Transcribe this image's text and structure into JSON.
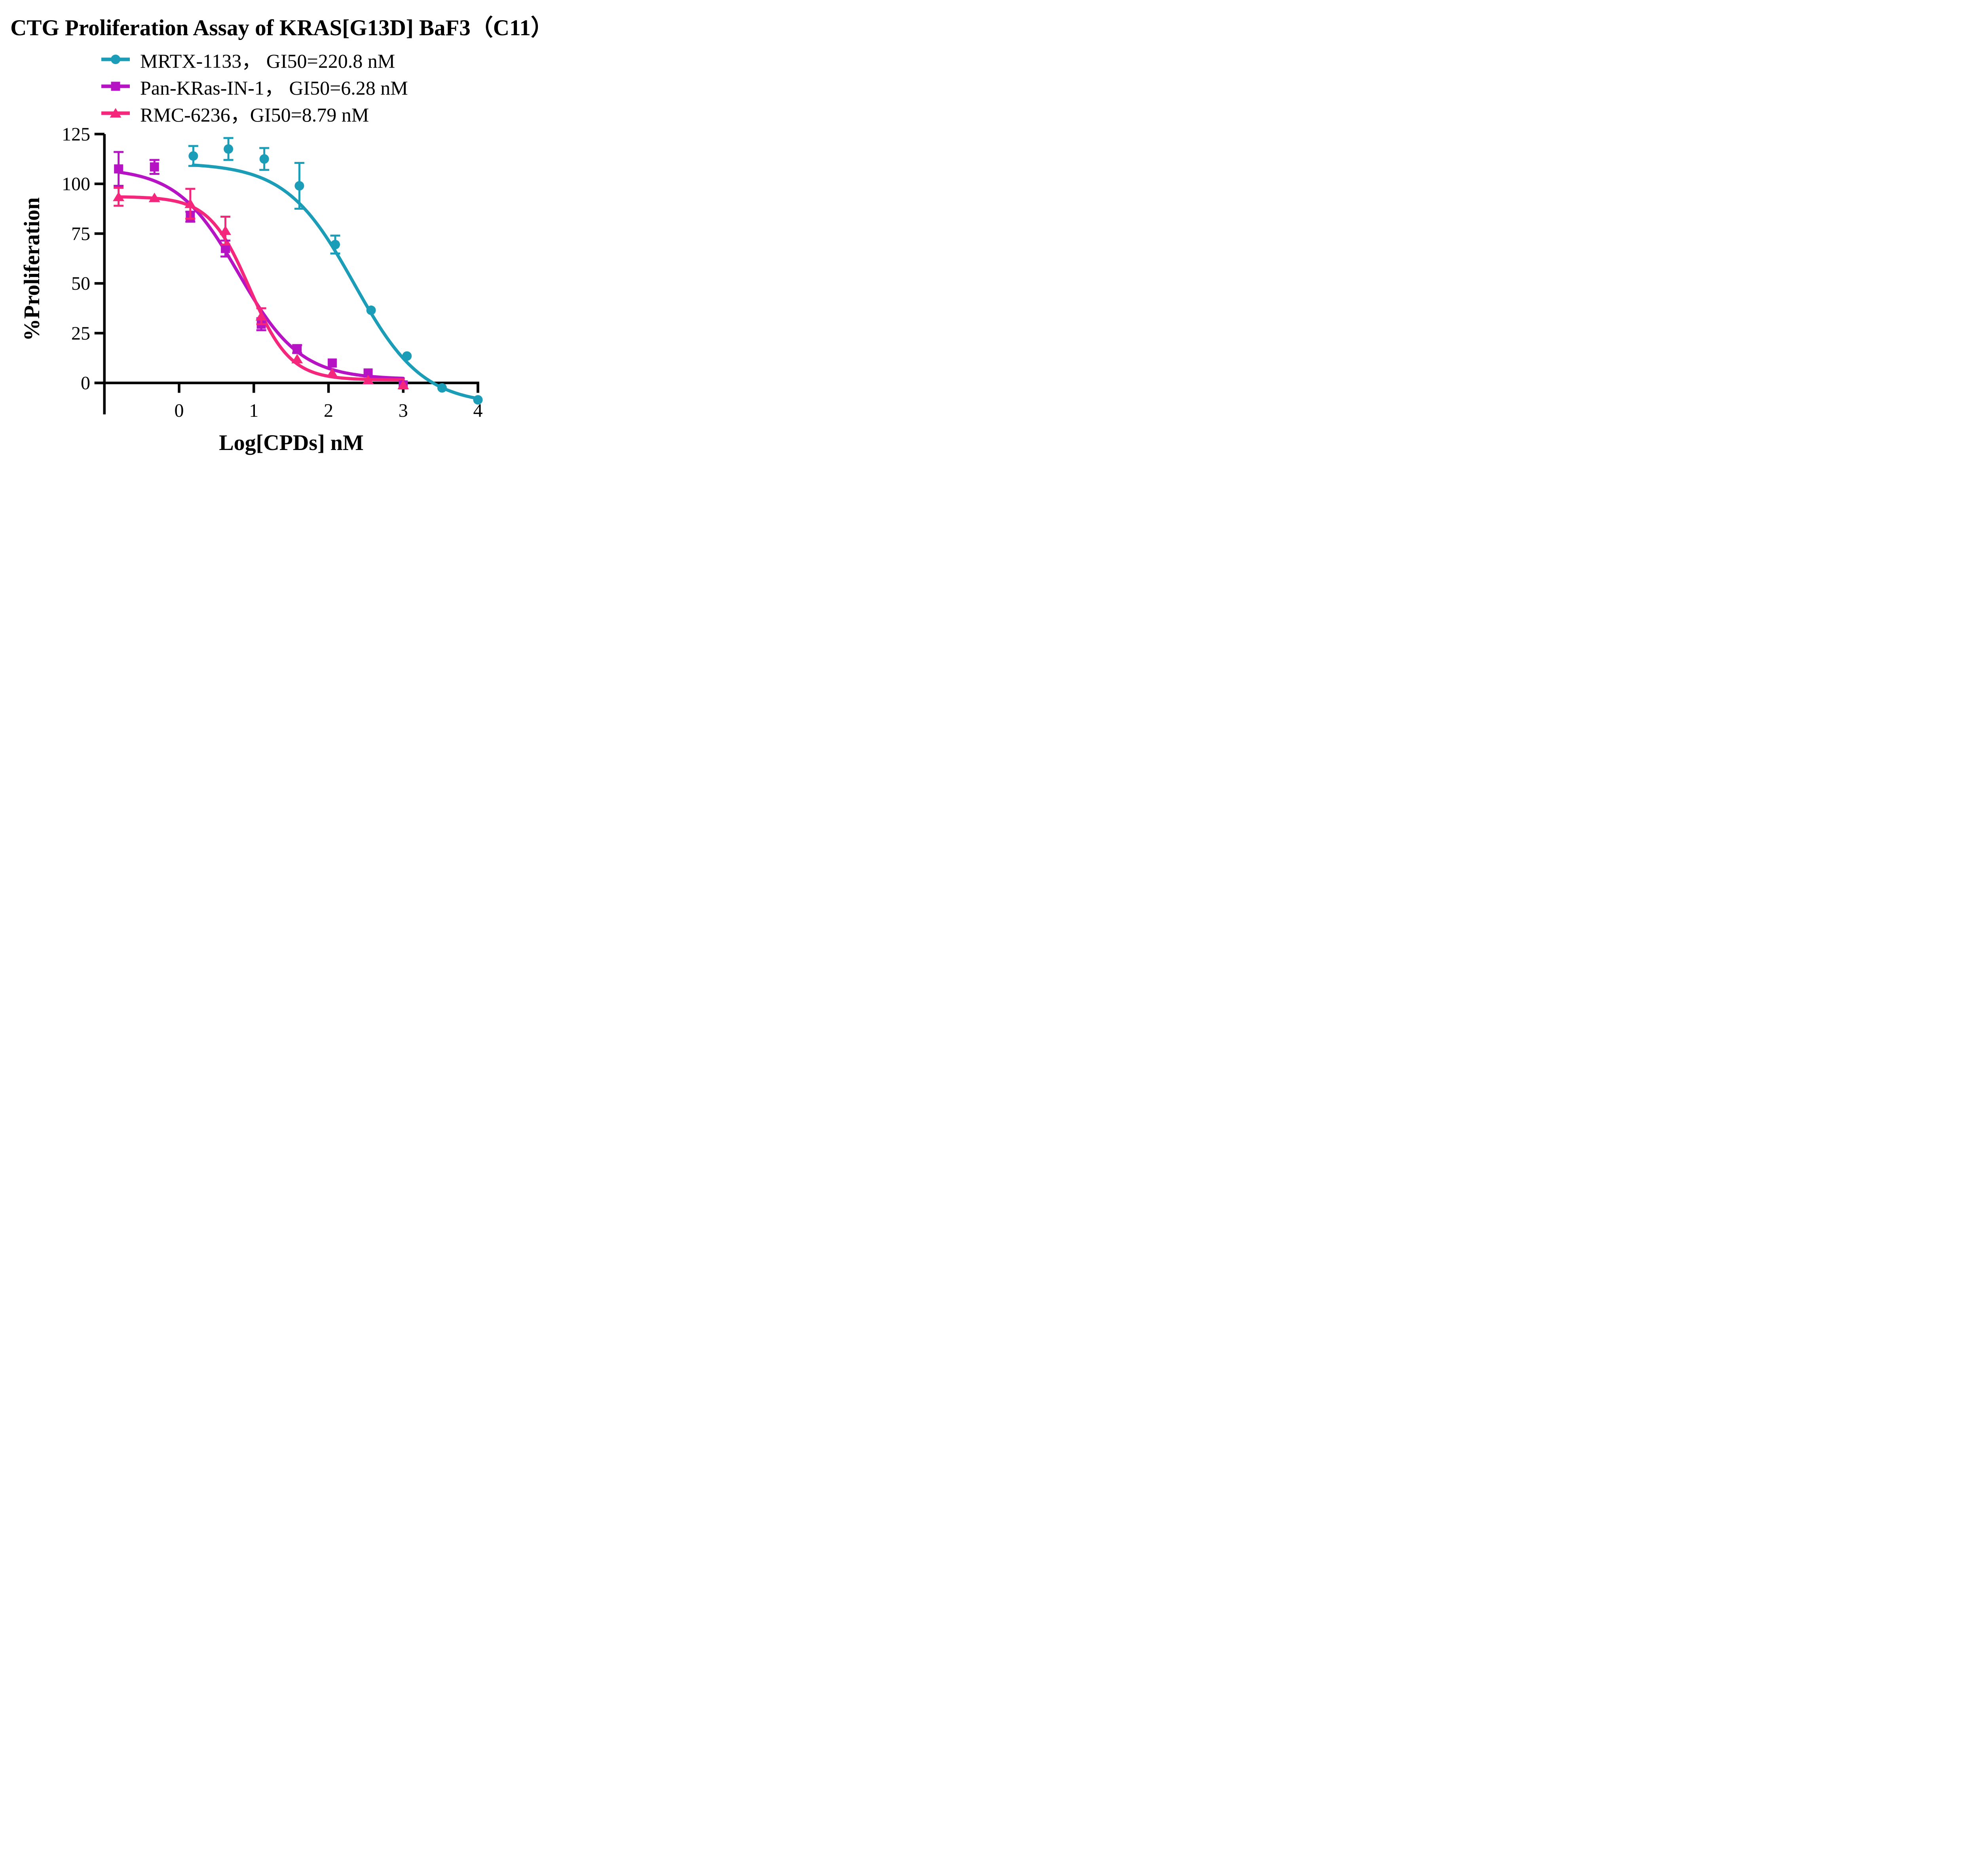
{
  "chart_data": {
    "type": "line",
    "title": "CTG Proliferation Assay of KRAS[G13D] BaF3（C11）",
    "xlabel": "Log[CPDs] nM",
    "ylabel": "%Proliferation",
    "x_ticks": [
      0,
      1,
      2,
      3,
      4
    ],
    "y_ticks": [
      0,
      25,
      50,
      75,
      100,
      125
    ],
    "xlim": [
      -1,
      4
    ],
    "ylim": [
      0,
      125
    ],
    "grid": "off",
    "legend_position": "top-left",
    "axis_color": "#000000",
    "background_color": "#ffffff",
    "series": [
      {
        "name": "MRTX-1133",
        "gi50": "220.8 nM",
        "legend_label": "MRTX-1133，  GI50=220.8 nM",
        "color": "#1b9db8",
        "marker": "circle",
        "x": [
          0.19,
          0.66,
          1.14,
          1.61,
          2.09,
          2.57,
          3.05,
          3.52,
          4.0
        ],
        "y": [
          114,
          117.5,
          112.5,
          99,
          69.5,
          36.5,
          13.5,
          -2.5,
          -8.5
        ],
        "err": [
          5,
          5.5,
          5.5,
          11.5,
          4.5,
          0,
          0,
          0,
          0
        ],
        "fit": {
          "top": 110.5,
          "bottom": -11,
          "logec50": 2.344,
          "hill": 0.95,
          "range": [
            0.19,
            4.0
          ]
        }
      },
      {
        "name": "Pan-KRas-IN-1",
        "gi50": "6.28 nM",
        "legend_label": "Pan-KRas-IN-1，  GI50=6.28 nM",
        "color": "#b513c3",
        "marker": "square",
        "x": [
          -0.81,
          -0.33,
          0.15,
          0.62,
          1.1,
          1.58,
          2.05,
          2.53,
          3.0
        ],
        "y": [
          107.5,
          108.5,
          83.5,
          67.5,
          29.5,
          17,
          10,
          5,
          -1
        ],
        "err": [
          8.5,
          3.5,
          2.5,
          4,
          3,
          2,
          0,
          0,
          0
        ],
        "fit": {
          "top": 108,
          "bottom": 1.8,
          "logec50": 0.798,
          "hill": 1.05,
          "range": [
            -0.81,
            3.0
          ]
        }
      },
      {
        "name": "RMC-6236",
        "gi50": "8.79 nM",
        "legend_label": "RMC-6236，GI50=8.79 nM",
        "color": "#f5277c",
        "marker": "triangle",
        "x": [
          -0.81,
          -0.33,
          0.15,
          0.62,
          1.1,
          1.58,
          2.05,
          2.53,
          3.0
        ],
        "y": [
          93.5,
          93,
          90,
          76.5,
          33.5,
          12,
          5,
          1.5,
          -1
        ],
        "err": [
          4.5,
          0,
          7.5,
          7,
          4,
          0,
          0,
          0,
          0
        ],
        "fit": {
          "top": 93.6,
          "bottom": 1.5,
          "logec50": 0.944,
          "hill": 1.6,
          "range": [
            -0.81,
            3.0
          ]
        }
      }
    ]
  }
}
